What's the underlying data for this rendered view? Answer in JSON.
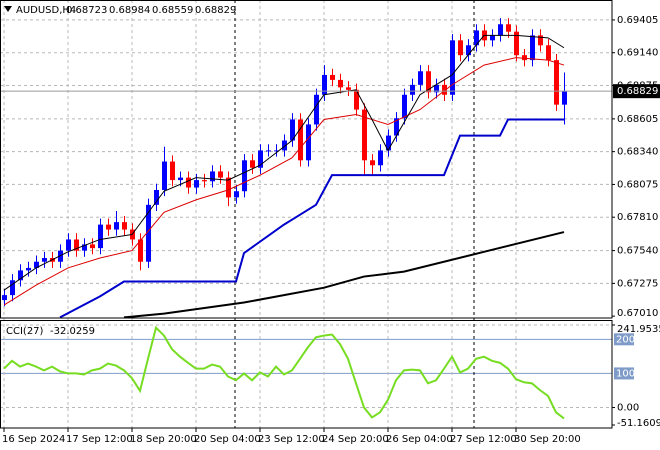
{
  "chart_data": [
    {
      "type": "candlestick",
      "title": "AUDUSD,H4",
      "ohlc_readout": [
        0.68723,
        0.68984,
        0.68559,
        0.68829
      ],
      "open": [
        0.6714,
        0.6718,
        0.673,
        0.6738,
        0.674,
        0.6745,
        0.6748,
        0.6745,
        0.6754,
        0.6763,
        0.6754,
        0.6759,
        0.6756,
        0.6775,
        0.6771,
        0.6777,
        0.6771,
        0.6763,
        0.6745,
        0.6791,
        0.6803,
        0.6826,
        0.6811,
        0.6813,
        0.6805,
        0.6811,
        0.681,
        0.6818,
        0.6813,
        0.6797,
        0.6802,
        0.6827,
        0.6821,
        0.6835,
        0.6835,
        0.6835,
        0.6843,
        0.686,
        0.6827,
        0.6856,
        0.688,
        0.6896,
        0.6892,
        0.6886,
        0.6884,
        0.6868,
        0.6827,
        0.6823,
        0.6835,
        0.6847,
        0.6861,
        0.688,
        0.6888,
        0.6899,
        0.6882,
        0.6888,
        0.688,
        0.6924,
        0.6912,
        0.692,
        0.6932,
        0.6924,
        0.6928,
        0.6937,
        0.6931,
        0.6912,
        0.6908,
        0.6928,
        0.692,
        0.6908,
        0.6872
      ],
      "high": [
        0.6723,
        0.6735,
        0.6743,
        0.6745,
        0.675,
        0.6753,
        0.6753,
        0.6759,
        0.6768,
        0.6768,
        0.6764,
        0.6764,
        0.678,
        0.678,
        0.6786,
        0.6782,
        0.6776,
        0.6768,
        0.6796,
        0.6808,
        0.6838,
        0.6831,
        0.6818,
        0.6818,
        0.6816,
        0.6816,
        0.6823,
        0.6823,
        0.6818,
        0.6807,
        0.6832,
        0.6832,
        0.684,
        0.684,
        0.684,
        0.6848,
        0.6865,
        0.6865,
        0.6861,
        0.6885,
        0.6904,
        0.6901,
        0.6897,
        0.6891,
        0.6889,
        0.6873,
        0.6832,
        0.684,
        0.6852,
        0.6866,
        0.6885,
        0.6893,
        0.6904,
        0.6904,
        0.6893,
        0.6893,
        0.6929,
        0.6929,
        0.6925,
        0.6937,
        0.6937,
        0.6933,
        0.6942,
        0.6942,
        0.6936,
        0.6917,
        0.6933,
        0.6933,
        0.6925,
        0.6913,
        0.6898
      ],
      "low": [
        0.6709,
        0.6713,
        0.6725,
        0.6733,
        0.6735,
        0.674,
        0.674,
        0.674,
        0.6749,
        0.6749,
        0.6749,
        0.6751,
        0.6751,
        0.6766,
        0.6766,
        0.6766,
        0.6758,
        0.6738,
        0.674,
        0.6786,
        0.6798,
        0.6806,
        0.6806,
        0.68,
        0.68,
        0.6805,
        0.6805,
        0.6808,
        0.679,
        0.6792,
        0.6797,
        0.6816,
        0.6816,
        0.683,
        0.683,
        0.683,
        0.6838,
        0.6822,
        0.6822,
        0.6851,
        0.6875,
        0.6887,
        0.6881,
        0.6879,
        0.6863,
        0.6815,
        0.6815,
        0.6818,
        0.683,
        0.6842,
        0.6856,
        0.6875,
        0.6883,
        0.6877,
        0.6877,
        0.6875,
        0.6875,
        0.6907,
        0.6907,
        0.6915,
        0.6919,
        0.6919,
        0.6923,
        0.6926,
        0.6907,
        0.6903,
        0.6903,
        0.6915,
        0.6903,
        0.6867,
        0.6856
      ],
      "close": [
        0.6718,
        0.673,
        0.6738,
        0.674,
        0.6745,
        0.6748,
        0.6745,
        0.6754,
        0.6763,
        0.6754,
        0.6759,
        0.6756,
        0.6775,
        0.6771,
        0.6777,
        0.6771,
        0.6763,
        0.6745,
        0.6791,
        0.6803,
        0.6826,
        0.6811,
        0.6813,
        0.6805,
        0.6811,
        0.681,
        0.6818,
        0.6813,
        0.6797,
        0.6802,
        0.6827,
        0.6821,
        0.6835,
        0.6835,
        0.6835,
        0.6843,
        0.686,
        0.6827,
        0.6856,
        0.688,
        0.6896,
        0.6892,
        0.6886,
        0.6884,
        0.6868,
        0.6827,
        0.6823,
        0.6835,
        0.6847,
        0.6861,
        0.688,
        0.6888,
        0.6899,
        0.6882,
        0.6888,
        0.688,
        0.6924,
        0.6912,
        0.692,
        0.6932,
        0.6924,
        0.6928,
        0.6937,
        0.6931,
        0.6912,
        0.6908,
        0.6928,
        0.692,
        0.6908,
        0.6872,
        0.68829
      ],
      "up_color": "#0000ff",
      "down_color": "#ff0000",
      "overlays": [
        {
          "color": "#000000",
          "width": 2,
          "x": [
            15,
            20,
            30,
            40,
            45,
            50,
            60,
            70
          ],
          "values": [
            0.67,
            0.6703,
            0.6712,
            0.6724,
            0.6733,
            0.6737,
            0.6753,
            0.6769
          ]
        },
        {
          "color": "#0000cc",
          "width": 2,
          "x": [
            7,
            12,
            15,
            29,
            30,
            35,
            36,
            39,
            41,
            55,
            57,
            62,
            63,
            70
          ],
          "values": [
            0.67,
            0.6717,
            0.6729,
            0.6729,
            0.6752,
            0.6775,
            0.6779,
            0.6791,
            0.6815,
            0.6815,
            0.6847,
            0.6847,
            0.686,
            0.686
          ]
        },
        {
          "color": "#dd0000",
          "width": 1,
          "x": [
            0,
            4,
            8,
            12,
            16,
            20,
            24,
            28,
            32,
            36,
            40,
            44,
            48,
            52,
            56,
            60,
            64,
            68,
            70
          ],
          "values": [
            0.671,
            0.6726,
            0.674,
            0.6748,
            0.6754,
            0.6785,
            0.6795,
            0.6803,
            0.6815,
            0.6829,
            0.686,
            0.6864,
            0.6856,
            0.6868,
            0.6888,
            0.6904,
            0.691,
            0.6908,
            0.6904
          ]
        },
        {
          "color": "#000000",
          "width": 1,
          "x": [
            0,
            4,
            8,
            12,
            16,
            20,
            24,
            28,
            32,
            36,
            40,
            44,
            46,
            48,
            52,
            56,
            60,
            64,
            68,
            70
          ],
          "values": [
            0.6722,
            0.674,
            0.6753,
            0.6763,
            0.6767,
            0.6802,
            0.6813,
            0.6811,
            0.6823,
            0.6843,
            0.688,
            0.6884,
            0.686,
            0.6835,
            0.688,
            0.6896,
            0.6928,
            0.6928,
            0.6926,
            0.6918
          ]
        }
      ],
      "last_price": 0.68829,
      "ylim": [
        0.66995,
        0.6955
      ],
      "yticks": [
        0.69405,
        {
          "value": 0.6914,
          "label": "0.69140"
        },
        0.68875,
        0.68605,
        {
          "value": 0.6834,
          "label": "0.68340"
        },
        0.68075,
        {
          "value": 0.6781,
          "label": "0.67810"
        },
        {
          "value": 0.6754,
          "label": "0.67540"
        },
        0.67275,
        {
          "value": 0.6701,
          "label": "0.67010"
        }
      ],
      "grid": true
    },
    {
      "type": "line",
      "title": "CCI(27)",
      "color": "#77dd22",
      "values": [
        114,
        137,
        120,
        129,
        120,
        109,
        120,
        106,
        100,
        100,
        97,
        109,
        114,
        129,
        123,
        109,
        86,
        49,
        143,
        234,
        211,
        171,
        149,
        131,
        114,
        114,
        126,
        120,
        91,
        80,
        100,
        80,
        103,
        91,
        120,
        97,
        109,
        143,
        177,
        206,
        211,
        214,
        186,
        143,
        71,
        0,
        -29,
        -14,
        23,
        80,
        109,
        111,
        109,
        71,
        80,
        114,
        149,
        103,
        114,
        143,
        149,
        137,
        131,
        114,
        83,
        74,
        71,
        51,
        34,
        -14,
        -32.0259
      ],
      "ylim": [
        -51.1609,
        241.9535
      ],
      "yticks": [
        241.9535,
        {
          "value": 0,
          "label": "0.00"
        },
        -51.1609
      ],
      "levels": [
        200,
        100
      ],
      "xticks": [
        {
          "value": 0,
          "label": "16 Sep 2024"
        },
        {
          "value": 8,
          "label": "17 Sep 12:00"
        },
        {
          "value": 16,
          "label": "18 Sep 20:00"
        },
        {
          "value": 24,
          "label": "20 Sep 04:00"
        },
        {
          "value": 32,
          "label": "23 Sep 12:00"
        },
        {
          "value": 40,
          "label": "24 Sep 20:00"
        },
        {
          "value": 48,
          "label": "26 Sep 04:00"
        },
        {
          "value": 56,
          "label": "27 Sep 12:00"
        },
        {
          "value": 64,
          "label": "30 Sep 20:00"
        }
      ],
      "grid": true
    }
  ]
}
